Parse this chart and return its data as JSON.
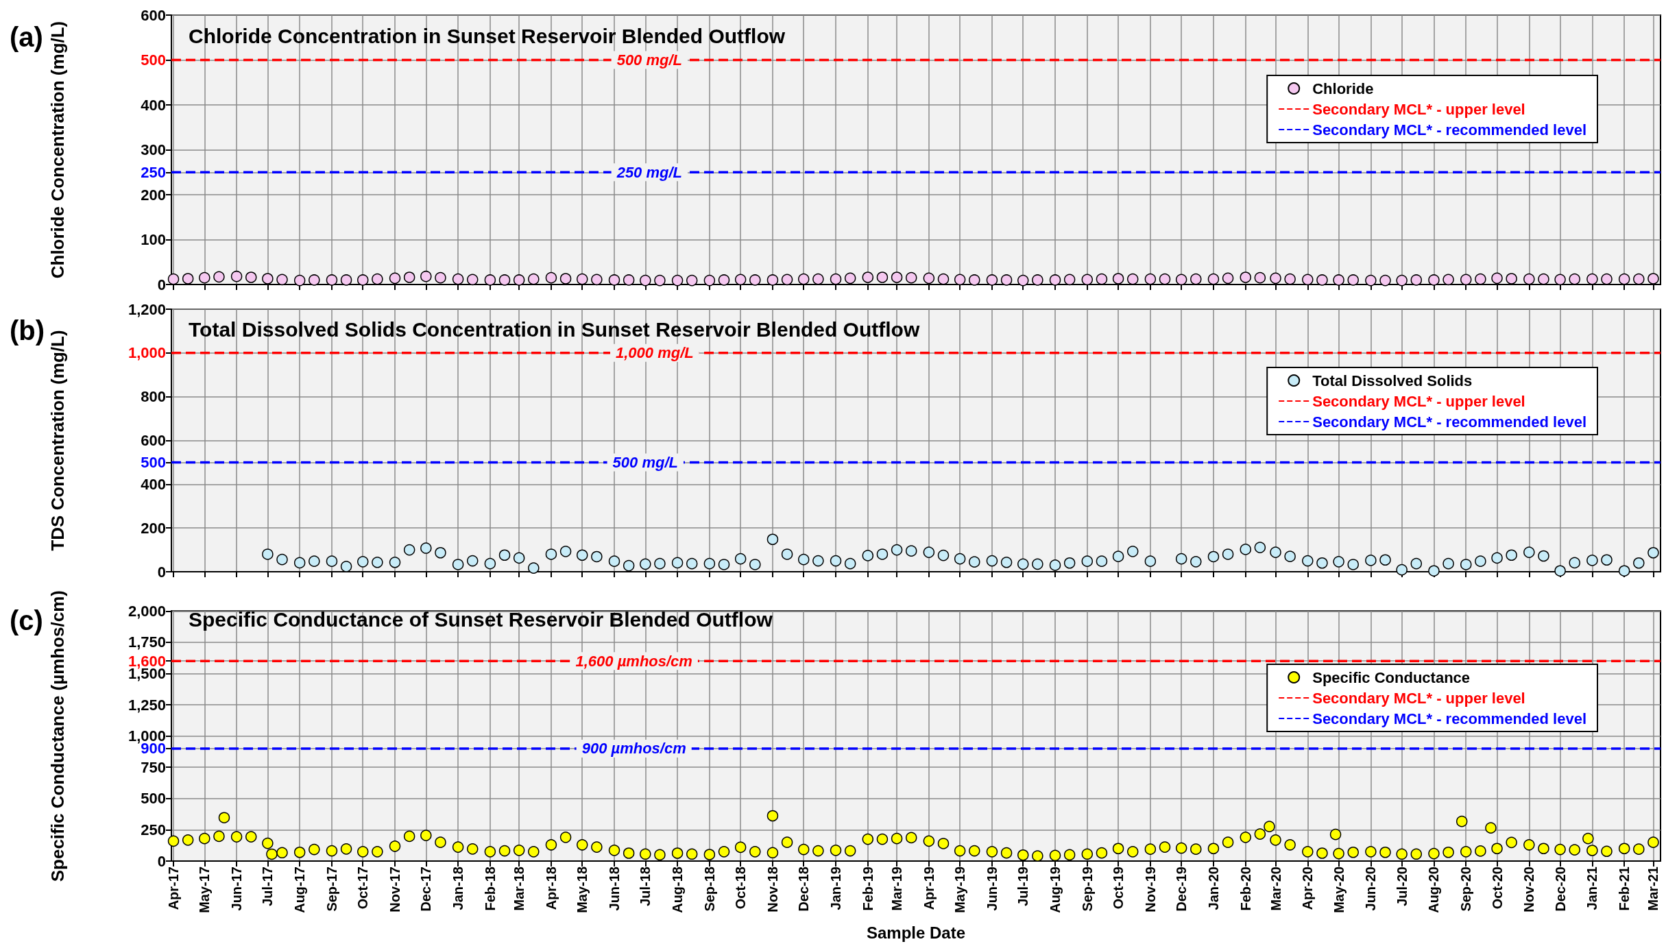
{
  "chart_data": [
    {
      "type": "scatter",
      "title": "Chloride Concentration in Sunset Reservoir Blended Outflow",
      "ylabel": "Chloride Concentration (mg/L)",
      "annotations": [
        "(a)",
        {
          "text": "500 mg/L",
          "x": "2018-07-05",
          "y": 500
        },
        {
          "text": "250 mg/L",
          "x": "2018-07-05",
          "y": 250
        }
      ],
      "xlim": [
        "2017-03-30",
        "2021-03-08"
      ],
      "xticks": [
        "2017-04-01",
        "2017-05-01",
        "2017-06-01",
        "2017-07-01",
        "2017-08-01",
        "2017-09-01",
        "2017-10-01",
        "2017-11-01",
        "2017-12-01",
        "2018-01-01",
        "2018-02-01",
        "2018-03-01",
        "2018-04-01",
        "2018-05-01",
        "2018-06-01",
        "2018-07-01",
        "2018-08-01",
        "2018-09-01",
        "2018-10-01",
        "2018-11-01",
        "2018-12-01",
        "2019-01-01",
        "2019-02-01",
        "2019-03-01",
        "2019-04-01",
        "2019-05-01",
        "2019-06-01",
        "2019-07-01",
        "2019-08-01",
        "2019-09-01",
        "2019-10-01",
        "2019-11-01",
        "2019-12-01",
        "2020-01-01",
        "2020-02-01",
        "2020-03-01",
        "2020-04-01",
        "2020-05-01",
        "2020-06-01",
        "2020-07-01",
        "2020-08-01",
        "2020-09-01",
        "2020-10-01",
        "2020-11-01",
        "2020-12-01",
        "2021-01-01",
        "2021-02-01",
        "2021-03-01"
      ],
      "ylim": [
        0,
        600
      ],
      "yticks": [
        0,
        100,
        200,
        250,
        300,
        400,
        500,
        600
      ],
      "grid": true,
      "legend": "top right",
      "tick_labels": "y",
      "x": [
        "2017-04-01",
        "2017-04-15",
        "2017-05-01",
        "2017-05-15",
        "2017-06-01",
        "2017-06-15",
        "2017-07-01",
        "2017-07-15",
        "2017-08-01",
        "2017-08-15",
        "2017-09-01",
        "2017-09-15",
        "2017-10-01",
        "2017-10-15",
        "2017-11-01",
        "2017-11-15",
        "2017-12-01",
        "2017-12-15",
        "2018-01-01",
        "2018-01-15",
        "2018-02-01",
        "2018-02-15",
        "2018-03-01",
        "2018-03-15",
        "2018-04-01",
        "2018-04-15",
        "2018-05-01",
        "2018-05-15",
        "2018-06-01",
        "2018-06-15",
        "2018-07-01",
        "2018-07-15",
        "2018-08-01",
        "2018-08-15",
        "2018-09-01",
        "2018-09-15",
        "2018-10-01",
        "2018-10-15",
        "2018-11-01",
        "2018-11-15",
        "2018-12-01",
        "2018-12-15",
        "2019-01-01",
        "2019-01-15",
        "2019-02-01",
        "2019-02-15",
        "2019-03-01",
        "2019-03-15",
        "2019-04-01",
        "2019-04-15",
        "2019-05-01",
        "2019-05-15",
        "2019-06-01",
        "2019-06-15",
        "2019-07-01",
        "2019-07-15",
        "2019-08-01",
        "2019-08-15",
        "2019-09-01",
        "2019-09-15",
        "2019-10-01",
        "2019-10-15",
        "2019-11-01",
        "2019-11-15",
        "2019-12-01",
        "2019-12-15",
        "2020-01-01",
        "2020-01-15",
        "2020-02-01",
        "2020-02-15",
        "2020-03-01",
        "2020-03-15",
        "2020-04-01",
        "2020-04-15",
        "2020-05-01",
        "2020-05-15",
        "2020-06-01",
        "2020-06-15",
        "2020-07-01",
        "2020-07-15",
        "2020-08-01",
        "2020-08-15",
        "2020-09-01",
        "2020-09-15",
        "2020-10-01",
        "2020-10-15",
        "2020-11-01",
        "2020-11-15",
        "2020-12-01",
        "2020-12-15",
        "2021-01-01",
        "2021-01-15",
        "2021-02-01",
        "2021-02-15",
        "2021-03-01"
      ],
      "series": [
        {
          "name": "Chloride",
          "color": "#f5c8f0",
          "marker": "circle",
          "values": [
            12,
            13,
            15,
            17,
            18,
            16,
            13,
            11,
            9,
            10,
            10,
            10,
            10,
            12,
            14,
            16,
            18,
            15,
            12,
            11,
            10,
            10,
            10,
            12,
            15,
            13,
            12,
            11,
            10,
            10,
            9,
            9,
            9,
            9,
            9,
            10,
            11,
            10,
            10,
            11,
            12,
            12,
            12,
            14,
            16,
            16,
            16,
            15,
            14,
            12,
            11,
            10,
            10,
            10,
            9,
            10,
            10,
            11,
            11,
            12,
            13,
            12,
            12,
            12,
            11,
            12,
            12,
            14,
            16,
            15,
            14,
            12,
            11,
            10,
            10,
            10,
            9,
            9,
            9,
            10,
            10,
            11,
            11,
            12,
            14,
            13,
            12,
            12,
            11,
            12,
            12,
            12,
            12,
            12,
            13
          ]
        },
        {
          "name": "Secondary MCL* - upper level",
          "type": "line",
          "color": "#ff0000",
          "line_style": "dashed",
          "x": [
            "2017-03-30",
            "2021-03-08"
          ],
          "values": [
            500,
            500
          ]
        },
        {
          "name": "Secondary MCL* - recommended level",
          "type": "line",
          "color": "#0000ff",
          "line_style": "dashed",
          "x": [
            "2017-03-30",
            "2021-03-08"
          ],
          "values": [
            250,
            250
          ]
        }
      ]
    },
    {
      "type": "scatter",
      "title": "Total Dissolved Solids Concentration in Sunset Reservoir Blended Outflow",
      "ylabel": "TDS Concentration (mg/L)",
      "annotations": [
        "(b)",
        {
          "text": "1,000 mg/L",
          "x": "2018-07-10",
          "y": 1000
        },
        {
          "text": "500 mg/L",
          "x": "2018-07-01",
          "y": 500
        }
      ],
      "xlim": [
        "2017-03-30",
        "2021-03-08"
      ],
      "xticks": [
        "2017-04-01",
        "2017-05-01",
        "2017-06-01",
        "2017-07-01",
        "2017-08-01",
        "2017-09-01",
        "2017-10-01",
        "2017-11-01",
        "2017-12-01",
        "2018-01-01",
        "2018-02-01",
        "2018-03-01",
        "2018-04-01",
        "2018-05-01",
        "2018-06-01",
        "2018-07-01",
        "2018-08-01",
        "2018-09-01",
        "2018-10-01",
        "2018-11-01",
        "2018-12-01",
        "2019-01-01",
        "2019-02-01",
        "2019-03-01",
        "2019-04-01",
        "2019-05-01",
        "2019-06-01",
        "2019-07-01",
        "2019-08-01",
        "2019-09-01",
        "2019-10-01",
        "2019-11-01",
        "2019-12-01",
        "2020-01-01",
        "2020-02-01",
        "2020-03-01",
        "2020-04-01",
        "2020-05-01",
        "2020-06-01",
        "2020-07-01",
        "2020-08-01",
        "2020-09-01",
        "2020-10-01",
        "2020-11-01",
        "2020-12-01",
        "2021-01-01",
        "2021-02-01",
        "2021-03-01"
      ],
      "ylim": [
        0,
        1200
      ],
      "yticks": [
        0,
        200,
        400,
        500,
        600,
        800,
        {
          "value": 1000,
          "label": "1,000"
        },
        {
          "value": 1200,
          "label": "1,200"
        }
      ],
      "grid": true,
      "legend": "top right",
      "tick_labels": "y",
      "x": [
        "2017-07-01",
        "2017-07-15",
        "2017-08-01",
        "2017-08-15",
        "2017-09-01",
        "2017-09-15",
        "2017-10-01",
        "2017-10-15",
        "2017-11-01",
        "2017-11-15",
        "2017-12-01",
        "2017-12-15",
        "2018-01-01",
        "2018-01-15",
        "2018-02-01",
        "2018-02-15",
        "2018-03-01",
        "2018-03-15",
        "2018-04-01",
        "2018-04-15",
        "2018-05-01",
        "2018-05-15",
        "2018-06-01",
        "2018-06-15",
        "2018-07-01",
        "2018-07-15",
        "2018-08-01",
        "2018-08-15",
        "2018-09-01",
        "2018-09-15",
        "2018-10-01",
        "2018-10-15",
        "2018-11-01",
        "2018-11-15",
        "2018-12-01",
        "2018-12-15",
        "2019-01-01",
        "2019-01-15",
        "2019-02-01",
        "2019-02-15",
        "2019-03-01",
        "2019-03-15",
        "2019-04-01",
        "2019-04-15",
        "2019-05-01",
        "2019-05-15",
        "2019-06-01",
        "2019-06-15",
        "2019-07-01",
        "2019-07-15",
        "2019-08-01",
        "2019-08-15",
        "2019-09-01",
        "2019-09-15",
        "2019-10-01",
        "2019-10-15",
        "2019-11-01",
        "2019-11-15",
        "2019-12-01",
        "2019-12-15",
        "2020-01-01",
        "2020-01-15",
        "2020-02-01",
        "2020-02-15",
        "2020-03-01",
        "2020-03-15",
        "2020-04-01",
        "2020-04-15",
        "2020-05-01",
        "2020-05-15",
        "2020-06-01",
        "2020-06-15",
        "2020-07-01",
        "2020-07-15",
        "2020-08-01",
        "2020-08-15",
        "2020-09-01",
        "2020-09-15",
        "2020-10-01",
        "2020-10-15",
        "2020-11-01",
        "2020-11-15",
        "2020-12-01",
        "2020-12-15",
        "2021-01-01",
        "2021-01-15",
        "2021-02-01",
        "2021-02-15",
        "2021-03-01"
      ],
      "series": [
        {
          "name": "Total Dissolved Solids",
          "color": "#c8ecf8",
          "marker": "circle",
          "values": [
            80,
            56,
            41,
            48,
            48,
            24,
            46,
            43,
            43,
            100,
            108,
            87,
            33,
            50,
            37,
            76,
            63,
            17,
            80,
            93,
            76,
            69,
            48,
            28,
            35,
            37,
            41,
            37,
            37,
            33,
            59,
            33,
            148,
            80,
            56,
            50,
            50,
            37,
            74,
            80,
            100,
            95,
            89,
            75,
            59,
            45,
            50,
            43,
            35,
            35,
            30,
            40,
            48,
            48,
            70,
            93,
            48,
            null,
            59,
            46,
            69,
            80,
            102,
            111,
            89,
            70,
            50,
            40,
            46,
            33,
            52,
            54,
            9,
            37,
            4,
            37,
            33,
            48,
            63,
            76,
            89,
            72,
            4,
            41,
            52,
            54,
            4,
            40,
            87
          ]
        },
        {
          "name": "Secondary MCL* - upper level",
          "type": "line",
          "color": "#ff0000",
          "line_style": "dashed",
          "x": [
            "2017-03-30",
            "2021-03-08"
          ],
          "values": [
            1000,
            1000
          ]
        },
        {
          "name": "Secondary MCL* - recommended level",
          "type": "line",
          "color": "#0000ff",
          "line_style": "dashed",
          "x": [
            "2017-03-30",
            "2021-03-08"
          ],
          "values": [
            500,
            500
          ]
        }
      ]
    },
    {
      "type": "scatter",
      "title": "Specific Conductance of Sunset Reservoir Blended Outflow",
      "ylabel": "Specific Conductance (µmhos/cm)",
      "xlabel": "Sample Date",
      "annotations": [
        "(c)",
        {
          "text": "1,600 µmhos/cm",
          "x": "2018-06-20",
          "y": 1600
        },
        {
          "text": "900 µmhos/cm",
          "x": "2018-06-20",
          "y": 900
        }
      ],
      "xlim": [
        "2017-03-30",
        "2021-03-08"
      ],
      "xticks": [
        {
          "value": "2017-04-01",
          "label": "Apr-17"
        },
        {
          "value": "2017-05-01",
          "label": "May-17"
        },
        {
          "value": "2017-06-01",
          "label": "Jun-17"
        },
        {
          "value": "2017-07-01",
          "label": "Jul-17"
        },
        {
          "value": "2017-08-01",
          "label": "Aug-17"
        },
        {
          "value": "2017-09-01",
          "label": "Sep-17"
        },
        {
          "value": "2017-10-01",
          "label": "Oct-17"
        },
        {
          "value": "2017-11-01",
          "label": "Nov-17"
        },
        {
          "value": "2017-12-01",
          "label": "Dec-17"
        },
        {
          "value": "2018-01-01",
          "label": "Jan-18"
        },
        {
          "value": "2018-02-01",
          "label": "Feb-18"
        },
        {
          "value": "2018-03-01",
          "label": "Mar-18"
        },
        {
          "value": "2018-04-01",
          "label": "Apr-18"
        },
        {
          "value": "2018-05-01",
          "label": "May-18"
        },
        {
          "value": "2018-06-01",
          "label": "Jun-18"
        },
        {
          "value": "2018-07-01",
          "label": "Jul-18"
        },
        {
          "value": "2018-08-01",
          "label": "Aug-18"
        },
        {
          "value": "2018-09-01",
          "label": "Sep-18"
        },
        {
          "value": "2018-10-01",
          "label": "Oct-18"
        },
        {
          "value": "2018-11-01",
          "label": "Nov-18"
        },
        {
          "value": "2018-12-01",
          "label": "Dec-18"
        },
        {
          "value": "2019-01-01",
          "label": "Jan-19"
        },
        {
          "value": "2019-02-01",
          "label": "Feb-19"
        },
        {
          "value": "2019-03-01",
          "label": "Mar-19"
        },
        {
          "value": "2019-04-01",
          "label": "Apr-19"
        },
        {
          "value": "2019-05-01",
          "label": "May-19"
        },
        {
          "value": "2019-06-01",
          "label": "Jun-19"
        },
        {
          "value": "2019-07-01",
          "label": "Jul-19"
        },
        {
          "value": "2019-08-01",
          "label": "Aug-19"
        },
        {
          "value": "2019-09-01",
          "label": "Sep-19"
        },
        {
          "value": "2019-10-01",
          "label": "Oct-19"
        },
        {
          "value": "2019-11-01",
          "label": "Nov-19"
        },
        {
          "value": "2019-12-01",
          "label": "Dec-19"
        },
        {
          "value": "2020-01-01",
          "label": "Jan-20"
        },
        {
          "value": "2020-02-01",
          "label": "Feb-20"
        },
        {
          "value": "2020-03-01",
          "label": "Mar-20"
        },
        {
          "value": "2020-04-01",
          "label": "Apr-20"
        },
        {
          "value": "2020-05-01",
          "label": "May-20"
        },
        {
          "value": "2020-06-01",
          "label": "Jun-20"
        },
        {
          "value": "2020-07-01",
          "label": "Jul-20"
        },
        {
          "value": "2020-08-01",
          "label": "Aug-20"
        },
        {
          "value": "2020-09-01",
          "label": "Sep-20"
        },
        {
          "value": "2020-10-01",
          "label": "Oct-20"
        },
        {
          "value": "2020-11-01",
          "label": "Nov-20"
        },
        {
          "value": "2020-12-01",
          "label": "Dec-20"
        },
        {
          "value": "2021-01-01",
          "label": "Jan-21"
        },
        {
          "value": "2021-02-01",
          "label": "Feb-21"
        },
        {
          "value": "2021-03-01",
          "label": "Mar-21"
        }
      ],
      "ylim": [
        0,
        2000
      ],
      "yticks": [
        0,
        250,
        500,
        750,
        900,
        {
          "value": 1000,
          "label": "1,000"
        },
        {
          "value": 1250,
          "label": "1,250"
        },
        {
          "value": 1500,
          "label": "1,500"
        },
        {
          "value": 1600,
          "label": "1,600"
        },
        {
          "value": 1750,
          "label": "1,750"
        },
        {
          "value": 2000,
          "label": "2,000"
        }
      ],
      "grid": true,
      "legend": "top right",
      "x": [
        "2017-04-01",
        "2017-04-15",
        "2017-05-01",
        "2017-05-15",
        "2017-06-01",
        "2017-06-15",
        "2017-07-01",
        "2017-07-15",
        "2017-08-01",
        "2017-08-15",
        "2017-09-01",
        "2017-09-15",
        "2017-10-01",
        "2017-10-15",
        "2017-11-01",
        "2017-11-15",
        "2017-12-01",
        "2017-12-15",
        "2018-01-01",
        "2018-01-15",
        "2018-02-01",
        "2018-02-15",
        "2018-03-01",
        "2018-03-15",
        "2018-04-01",
        "2018-04-15",
        "2018-05-01",
        "2018-05-15",
        "2018-06-01",
        "2018-06-15",
        "2018-07-01",
        "2018-07-15",
        "2018-08-01",
        "2018-08-15",
        "2018-09-01",
        "2018-09-15",
        "2018-10-01",
        "2018-10-15",
        "2018-11-01",
        "2018-11-15",
        "2018-12-01",
        "2018-12-15",
        "2019-01-01",
        "2019-01-15",
        "2019-02-01",
        "2019-02-15",
        "2019-03-01",
        "2019-03-15",
        "2019-04-01",
        "2019-04-15",
        "2019-05-01",
        "2019-05-15",
        "2019-06-01",
        "2019-06-15",
        "2019-07-01",
        "2019-07-15",
        "2019-08-01",
        "2019-08-15",
        "2019-09-01",
        "2019-09-15",
        "2019-10-01",
        "2019-10-15",
        "2019-11-01",
        "2019-11-15",
        "2019-12-01",
        "2019-12-15",
        "2020-01-01",
        "2020-01-15",
        "2020-02-01",
        "2020-02-15",
        "2020-03-01",
        "2020-03-15",
        "2020-04-01",
        "2020-04-15",
        "2020-05-01",
        "2020-05-15",
        "2020-06-01",
        "2020-06-15",
        "2020-07-01",
        "2020-07-15",
        "2020-08-01",
        "2020-08-15",
        "2020-09-01",
        "2020-09-15",
        "2020-10-01",
        "2020-10-15",
        "2020-11-01",
        "2020-11-15",
        "2020-12-01",
        "2020-12-15",
        "2021-01-01",
        "2021-01-15",
        "2021-02-01",
        "2021-02-15",
        "2021-03-01"
      ],
      "series": [
        {
          "name": "Specific Conductance",
          "color": "#ffff00",
          "marker": "circle",
          "values": [
            160,
            168,
            180,
            198,
            194,
            194,
            142,
            67,
            70,
            93,
            82,
            97,
            75,
            75,
            119,
            198,
            205,
            150,
            112,
            97,
            75,
            82,
            86,
            75,
            130,
            190,
            130,
            112,
            86,
            63,
            56,
            50,
            63,
            56,
            52,
            75,
            110,
            75,
            67,
            150,
            93,
            82,
            86,
            82,
            175,
            175,
            180,
            187,
            160,
            140,
            82,
            82,
            75,
            65,
            48,
            41,
            45,
            50,
            56,
            65,
            100,
            75,
            95,
            112,
            104,
            95,
            100,
            150,
            190,
            216,
            168,
            130,
            75,
            63,
            60,
            70,
            75,
            70,
            56,
            56,
            60,
            70,
            75,
            80,
            100,
            149,
            130,
            100,
            93,
            90,
            85,
            78,
            100,
            95,
            150
          ]
        },
        {
          "color": "#ffff00",
          "marker": "circle",
          "x": [
            "2017-05-20",
            "2017-07-05",
            "2018-11-01",
            "2020-02-24",
            "2020-04-28",
            "2020-08-28",
            "2020-09-25",
            "2020-12-28"
          ],
          "values": [
            347,
            55,
            362,
            276,
            213,
            317,
            265,
            180
          ]
        },
        {
          "name": "Secondary MCL* - upper level",
          "type": "line",
          "color": "#ff0000",
          "line_style": "dashed",
          "x": [
            "2017-03-30",
            "2021-03-08"
          ],
          "values": [
            1600,
            1600
          ]
        },
        {
          "name": "Secondary MCL* - recommended level",
          "type": "line",
          "color": "#0000ff",
          "line_style": "dashed",
          "x": [
            "2017-03-30",
            "2021-03-08"
          ],
          "values": [
            900,
            900
          ]
        }
      ]
    }
  ]
}
